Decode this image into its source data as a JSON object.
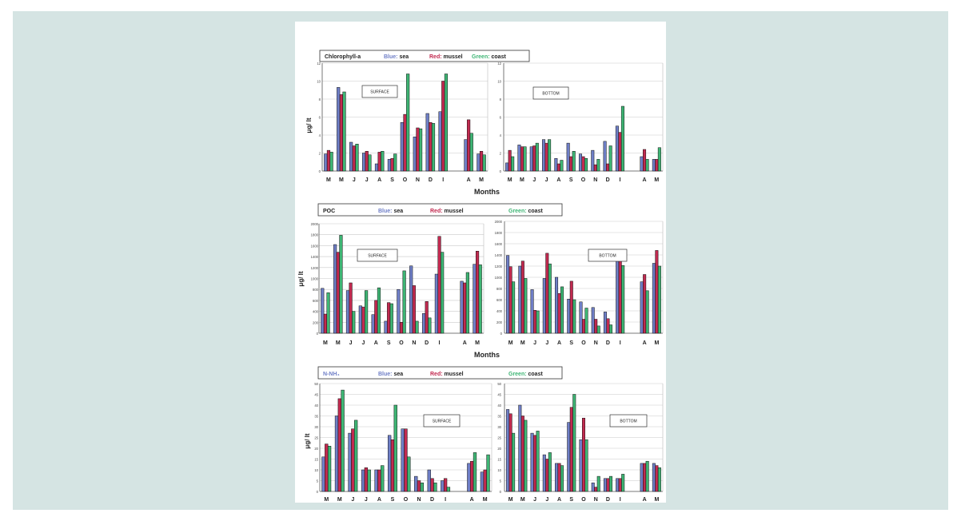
{
  "colors": {
    "sea": "#6f7fc7",
    "mussel": "#c22a50",
    "coast": "#3eb574",
    "frame_bg": "#d5e4e3"
  },
  "months_label": "Months",
  "chart_data": [
    {
      "type": "bar",
      "variable": "Chlorophyll-a",
      "ylabel": "μg/ lt",
      "xlabel": "Months",
      "legend": {
        "sea": "Blue: sea",
        "mussel": "Red: mussel",
        "coast": "Green: coast",
        "sea_key": "Blue:",
        "sea_name": "sea",
        "mussel_key": "Red:",
        "mussel_name": "mussel",
        "coast_key": "Green:",
        "coast_name": "coast"
      },
      "categories": [
        "M",
        "M",
        "J",
        "J",
        "A",
        "S",
        "O",
        "N",
        "D",
        "I",
        "",
        "A",
        "M"
      ],
      "panels": [
        {
          "label": "SURFACE",
          "ylim": [
            0,
            12
          ],
          "yticks": [
            "0",
            "2",
            "4",
            "6",
            "8",
            "10",
            "12"
          ],
          "series": [
            {
              "name": "sea",
              "values": [
                1.9,
                9.3,
                3.2,
                2.0,
                0.8,
                1.3,
                5.4,
                3.8,
                6.4,
                6.6,
                null,
                3.5,
                1.9
              ]
            },
            {
              "name": "mussel",
              "values": [
                2.3,
                8.5,
                2.8,
                2.2,
                2.1,
                1.4,
                6.3,
                4.8,
                5.4,
                10.0,
                null,
                5.7,
                2.2
              ]
            },
            {
              "name": "coast",
              "values": [
                2.1,
                8.8,
                3.0,
                1.8,
                2.2,
                1.9,
                10.8,
                4.7,
                5.3,
                10.8,
                null,
                4.2,
                1.8
              ]
            }
          ]
        },
        {
          "label": "BOTTOM",
          "ylim": [
            0,
            12
          ],
          "yticks": [
            "0",
            "2",
            "4",
            "6",
            "8",
            "10",
            "12"
          ],
          "series": [
            {
              "name": "sea",
              "values": [
                0.9,
                2.9,
                2.7,
                3.5,
                1.4,
                3.1,
                1.9,
                2.3,
                3.3,
                5.0,
                null,
                1.6,
                1.3
              ]
            },
            {
              "name": "mussel",
              "values": [
                2.3,
                2.7,
                2.8,
                3.1,
                0.8,
                1.6,
                1.6,
                0.7,
                0.8,
                4.3,
                null,
                2.4,
                1.3
              ]
            },
            {
              "name": "coast",
              "values": [
                1.6,
                2.7,
                3.1,
                3.5,
                1.2,
                2.2,
                1.4,
                1.3,
                2.8,
                7.2,
                null,
                1.3,
                2.6
              ]
            }
          ]
        }
      ]
    },
    {
      "type": "bar",
      "variable": "POC",
      "ylabel": "μg/ lt",
      "xlabel": "Months",
      "legend": {
        "sea": "Blue: sea",
        "mussel": "Red: mussel",
        "coast": "Green: coast",
        "sea_key": "Blue:",
        "sea_name": "sea",
        "mussel_key": "Red:",
        "mussel_name": "mussel",
        "coast_key": "Green:",
        "coast_name": "coast"
      },
      "categories": [
        "M",
        "M",
        "J",
        "J",
        "A",
        "S",
        "O",
        "N",
        "D",
        "I",
        "",
        "A",
        "M"
      ],
      "panels": [
        {
          "label": "SURFACE",
          "ylim": [
            0,
            2000
          ],
          "yticks": [
            "0",
            "200",
            "400",
            "600",
            "800",
            "1000",
            "1200",
            "1400",
            "1600",
            "1800",
            "2000"
          ],
          "series": [
            {
              "name": "sea",
              "values": [
                820,
                1620,
                780,
                500,
                340,
                220,
                800,
                1230,
                360,
                1080,
                null,
                950,
                1260
              ]
            },
            {
              "name": "mussel",
              "values": [
                350,
                1480,
                920,
                480,
                600,
                560,
                200,
                870,
                580,
                1770,
                null,
                920,
                1500
              ]
            },
            {
              "name": "coast",
              "values": [
                740,
                1790,
                400,
                780,
                830,
                540,
                1140,
                220,
                280,
                1480,
                null,
                1110,
                1250
              ]
            }
          ]
        },
        {
          "label": "BOTTOM",
          "ylim": [
            0,
            2000
          ],
          "yticks": [
            "0",
            "200",
            "400",
            "600",
            "800",
            "1000",
            "1200",
            "1400",
            "1600",
            "1800",
            "2000"
          ],
          "series": [
            {
              "name": "sea",
              "values": [
                1390,
                1200,
                780,
                980,
                1000,
                610,
                560,
                460,
                380,
                1390,
                null,
                920,
                1250
              ]
            },
            {
              "name": "mussel",
              "values": [
                1190,
                1290,
                410,
                1430,
                710,
                930,
                250,
                250,
                260,
                1420,
                null,
                1050,
                1480
              ]
            },
            {
              "name": "coast",
              "values": [
                920,
                980,
                400,
                1240,
                830,
                600,
                450,
                130,
                150,
                1210,
                null,
                760,
                1200
              ]
            }
          ]
        }
      ]
    },
    {
      "type": "bar",
      "variable": "N-NH₄",
      "ylabel": "μg/ lt",
      "xlabel": "",
      "legend": {
        "sea": "Blue: sea",
        "mussel": "Red: mussel",
        "coast": "Green: coast",
        "sea_key": "Blue:",
        "sea_name": "sea",
        "mussel_key": "Red:",
        "mussel_name": "mussel",
        "coast_key": "Green:",
        "coast_name": "coast"
      },
      "categories": [
        "M",
        "M",
        "J",
        "J",
        "A",
        "S",
        "O",
        "N",
        "D",
        "I",
        "",
        "A",
        "M"
      ],
      "panels": [
        {
          "label": "SURFACE",
          "ylim": [
            0,
            50
          ],
          "yticks": [
            "0",
            "5",
            "10",
            "15",
            "20",
            "25",
            "30",
            "35",
            "40",
            "45",
            "50"
          ],
          "series": [
            {
              "name": "sea",
              "values": [
                16,
                35,
                27,
                10,
                10,
                26,
                29,
                7,
                10,
                5,
                null,
                13,
                9
              ]
            },
            {
              "name": "mussel",
              "values": [
                22,
                43,
                29,
                11,
                10,
                24,
                29,
                5,
                6,
                6,
                null,
                14,
                10
              ]
            },
            {
              "name": "coast",
              "values": [
                21,
                47,
                33,
                10,
                12,
                40,
                16,
                4,
                4,
                2,
                null,
                18,
                17
              ]
            }
          ]
        },
        {
          "label": "BOTTOM",
          "ylim": [
            0,
            50
          ],
          "yticks": [
            "0",
            "5",
            "10",
            "15",
            "20",
            "25",
            "30",
            "35",
            "40",
            "45",
            "50"
          ],
          "series": [
            {
              "name": "sea",
              "values": [
                38,
                40,
                27,
                17,
                13,
                32,
                24,
                4,
                6,
                6,
                null,
                13,
                13
              ]
            },
            {
              "name": "mussel",
              "values": [
                36,
                35,
                26,
                15,
                13,
                39,
                34,
                2,
                6,
                6,
                null,
                13,
                12
              ]
            },
            {
              "name": "coast",
              "values": [
                27,
                33,
                28,
                18,
                12,
                45,
                24,
                7,
                7,
                8,
                null,
                14,
                11
              ]
            }
          ]
        }
      ]
    }
  ]
}
